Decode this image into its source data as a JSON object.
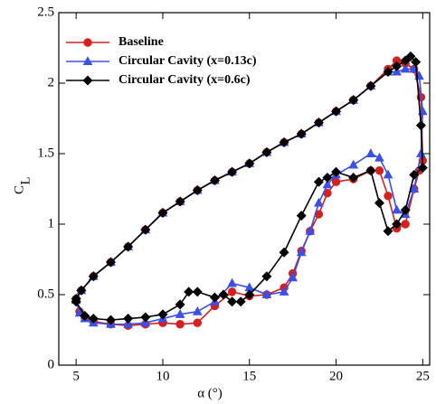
{
  "chart_data": {
    "type": "line",
    "x_label": "α (°)",
    "y_label": "C",
    "y_label_sub": "L",
    "xlim": [
      4,
      25.4
    ],
    "xticks": [
      5,
      10,
      15,
      20,
      25
    ],
    "ylim": [
      0,
      2.5
    ],
    "yticks": [
      0,
      0.5,
      1,
      1.5,
      2,
      2.5
    ],
    "legend": "upper left",
    "series": [
      {
        "name": "Baseline",
        "color": "#d42020",
        "marker": "circle",
        "x": [
          5,
          5.3,
          6,
          7,
          8,
          9,
          10,
          11,
          12,
          13,
          14,
          15,
          16,
          17,
          18,
          19,
          20,
          21,
          22,
          23,
          23.5,
          24,
          24.5,
          24.9,
          25,
          24.8,
          24.5,
          24,
          23.5,
          23,
          22.5,
          22,
          21,
          20,
          19.5,
          19,
          18.5,
          18,
          17.5,
          17,
          16,
          15,
          14,
          13,
          12,
          11,
          10,
          9,
          8,
          7,
          6,
          5.5,
          5.2,
          5
        ],
        "values": [
          0.47,
          0.53,
          0.63,
          0.73,
          0.84,
          0.96,
          1.08,
          1.16,
          1.24,
          1.31,
          1.37,
          1.43,
          1.51,
          1.58,
          1.64,
          1.72,
          1.8,
          1.88,
          1.98,
          2.1,
          2.16,
          2.14,
          2.1,
          1.9,
          1.45,
          1.38,
          1.25,
          1.0,
          0.97,
          1.2,
          1.38,
          1.38,
          1.32,
          1.3,
          1.22,
          1.07,
          0.95,
          0.81,
          0.65,
          0.55,
          0.5,
          0.49,
          0.52,
          0.42,
          0.3,
          0.29,
          0.3,
          0.29,
          0.28,
          0.29,
          0.31,
          0.34,
          0.38,
          0.47
        ]
      },
      {
        "name": "Circular Cavity (x=0.13c)",
        "color": "#3a50e6",
        "marker": "triangle",
        "x": [
          5,
          5.3,
          6,
          7,
          8,
          9,
          10,
          11,
          12,
          13,
          14,
          15,
          16,
          17,
          18,
          19,
          20,
          21,
          22,
          23,
          23.5,
          24,
          24.5,
          24.8,
          25,
          24.9,
          24.5,
          24,
          23.5,
          23,
          22.5,
          22,
          21,
          20,
          19.5,
          19,
          18.5,
          18,
          17.5,
          17,
          16,
          15,
          14,
          13,
          12,
          11,
          10,
          9,
          8,
          7,
          6,
          5.5,
          5.2,
          5
        ],
        "values": [
          0.47,
          0.53,
          0.63,
          0.73,
          0.84,
          0.96,
          1.08,
          1.16,
          1.24,
          1.31,
          1.37,
          1.43,
          1.51,
          1.58,
          1.64,
          1.72,
          1.8,
          1.88,
          1.98,
          2.08,
          2.08,
          2.1,
          2.1,
          2.05,
          1.8,
          1.5,
          1.25,
          1.07,
          1.1,
          1.35,
          1.47,
          1.5,
          1.42,
          1.35,
          1.28,
          1.15,
          0.95,
          0.8,
          0.62,
          0.52,
          0.5,
          0.55,
          0.58,
          0.45,
          0.38,
          0.36,
          0.33,
          0.3,
          0.29,
          0.29,
          0.3,
          0.33,
          0.37,
          0.46
        ]
      },
      {
        "name": "Circular Cavity (x=0.6c)",
        "color": "#000000",
        "marker": "diamond",
        "x": [
          5,
          5.3,
          6,
          7,
          8,
          9,
          10,
          11,
          12,
          13,
          14,
          15,
          16,
          17,
          18,
          19,
          20,
          21,
          22,
          23,
          23.5,
          24,
          24.3,
          24.6,
          24.9,
          25,
          24.5,
          24,
          23.5,
          23,
          22.5,
          22,
          21,
          20,
          19.5,
          19,
          18,
          17,
          16,
          15,
          14.5,
          14,
          13.5,
          13,
          12,
          11.5,
          11,
          10,
          9,
          8,
          7,
          6,
          5.5,
          5
        ],
        "values": [
          0.47,
          0.53,
          0.63,
          0.73,
          0.84,
          0.96,
          1.08,
          1.16,
          1.24,
          1.31,
          1.37,
          1.43,
          1.51,
          1.58,
          1.64,
          1.72,
          1.8,
          1.88,
          1.98,
          2.08,
          2.12,
          2.16,
          2.19,
          2.15,
          1.7,
          1.4,
          1.35,
          1.1,
          1.0,
          0.95,
          1.15,
          1.38,
          1.33,
          1.37,
          1.33,
          1.3,
          1.06,
          0.8,
          0.63,
          0.5,
          0.45,
          0.45,
          0.5,
          0.48,
          0.52,
          0.52,
          0.43,
          0.36,
          0.34,
          0.33,
          0.32,
          0.33,
          0.35,
          0.45
        ]
      }
    ]
  }
}
